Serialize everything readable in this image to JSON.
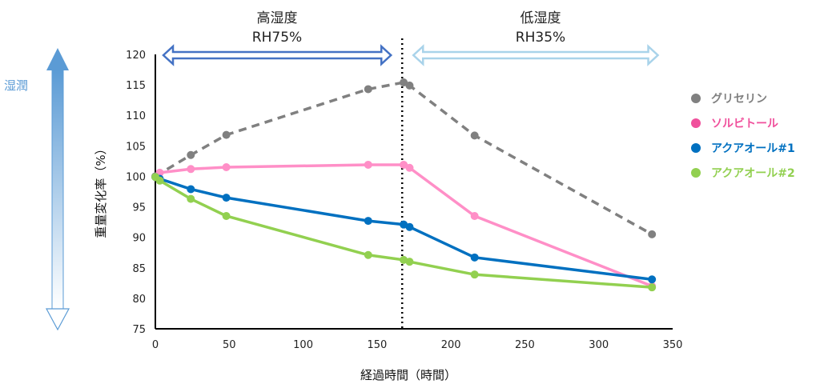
{
  "chart_data": {
    "type": "line",
    "xlabel": "経過時間（時間）",
    "ylabel": "重量変化率（%）",
    "xlim": [
      0,
      350
    ],
    "ylim": [
      75,
      120
    ],
    "xticks": [
      0,
      50,
      100,
      150,
      200,
      250,
      300,
      350
    ],
    "yticks": [
      75,
      80,
      85,
      90,
      95,
      100,
      105,
      110,
      115,
      120
    ],
    "divider_x": 167,
    "regions": [
      {
        "title": "高湿度",
        "subtitle": "RH75%",
        "x_start": 0,
        "x_end": 167,
        "color": "#4472c4"
      },
      {
        "title": "低湿度",
        "subtitle": "RH35%",
        "x_start": 167,
        "x_end": 340,
        "color": "#a9d3ea"
      }
    ],
    "side_label": "湿潤",
    "series": [
      {
        "name": "グリセリン",
        "color": "#808080",
        "dashed": true,
        "points": [
          [
            0,
            100
          ],
          [
            24,
            103.5
          ],
          [
            48,
            106.8
          ],
          [
            144,
            114.3
          ],
          [
            168,
            115.4
          ],
          [
            172,
            114.9
          ],
          [
            216,
            106.7
          ],
          [
            336,
            90.5
          ]
        ]
      },
      {
        "name": "ソルビトール",
        "color": "#ff8fc7",
        "legend_color": "#f0509c",
        "dashed": false,
        "points": [
          [
            0,
            99.9
          ],
          [
            3,
            100.6
          ],
          [
            24,
            101.2
          ],
          [
            48,
            101.5
          ],
          [
            144,
            101.9
          ],
          [
            168,
            101.9
          ],
          [
            172,
            101.4
          ],
          [
            216,
            93.5
          ],
          [
            336,
            82
          ]
        ]
      },
      {
        "name": "アクアオール#1",
        "color": "#0070c0",
        "dashed": false,
        "points": [
          [
            0,
            99.9
          ],
          [
            3,
            99.6
          ],
          [
            24,
            97.9
          ],
          [
            48,
            96.5
          ],
          [
            144,
            92.7
          ],
          [
            168,
            92.1
          ],
          [
            172,
            91.7
          ],
          [
            216,
            86.7
          ],
          [
            336,
            83.1
          ]
        ]
      },
      {
        "name": "アクアオール#2",
        "color": "#92d050",
        "dashed": false,
        "points": [
          [
            0,
            99.9
          ],
          [
            3,
            99.3
          ],
          [
            24,
            96.3
          ],
          [
            48,
            93.5
          ],
          [
            144,
            87.1
          ],
          [
            168,
            86.3
          ],
          [
            172,
            86
          ],
          [
            216,
            83.9
          ],
          [
            336,
            81.8
          ]
        ]
      }
    ]
  }
}
